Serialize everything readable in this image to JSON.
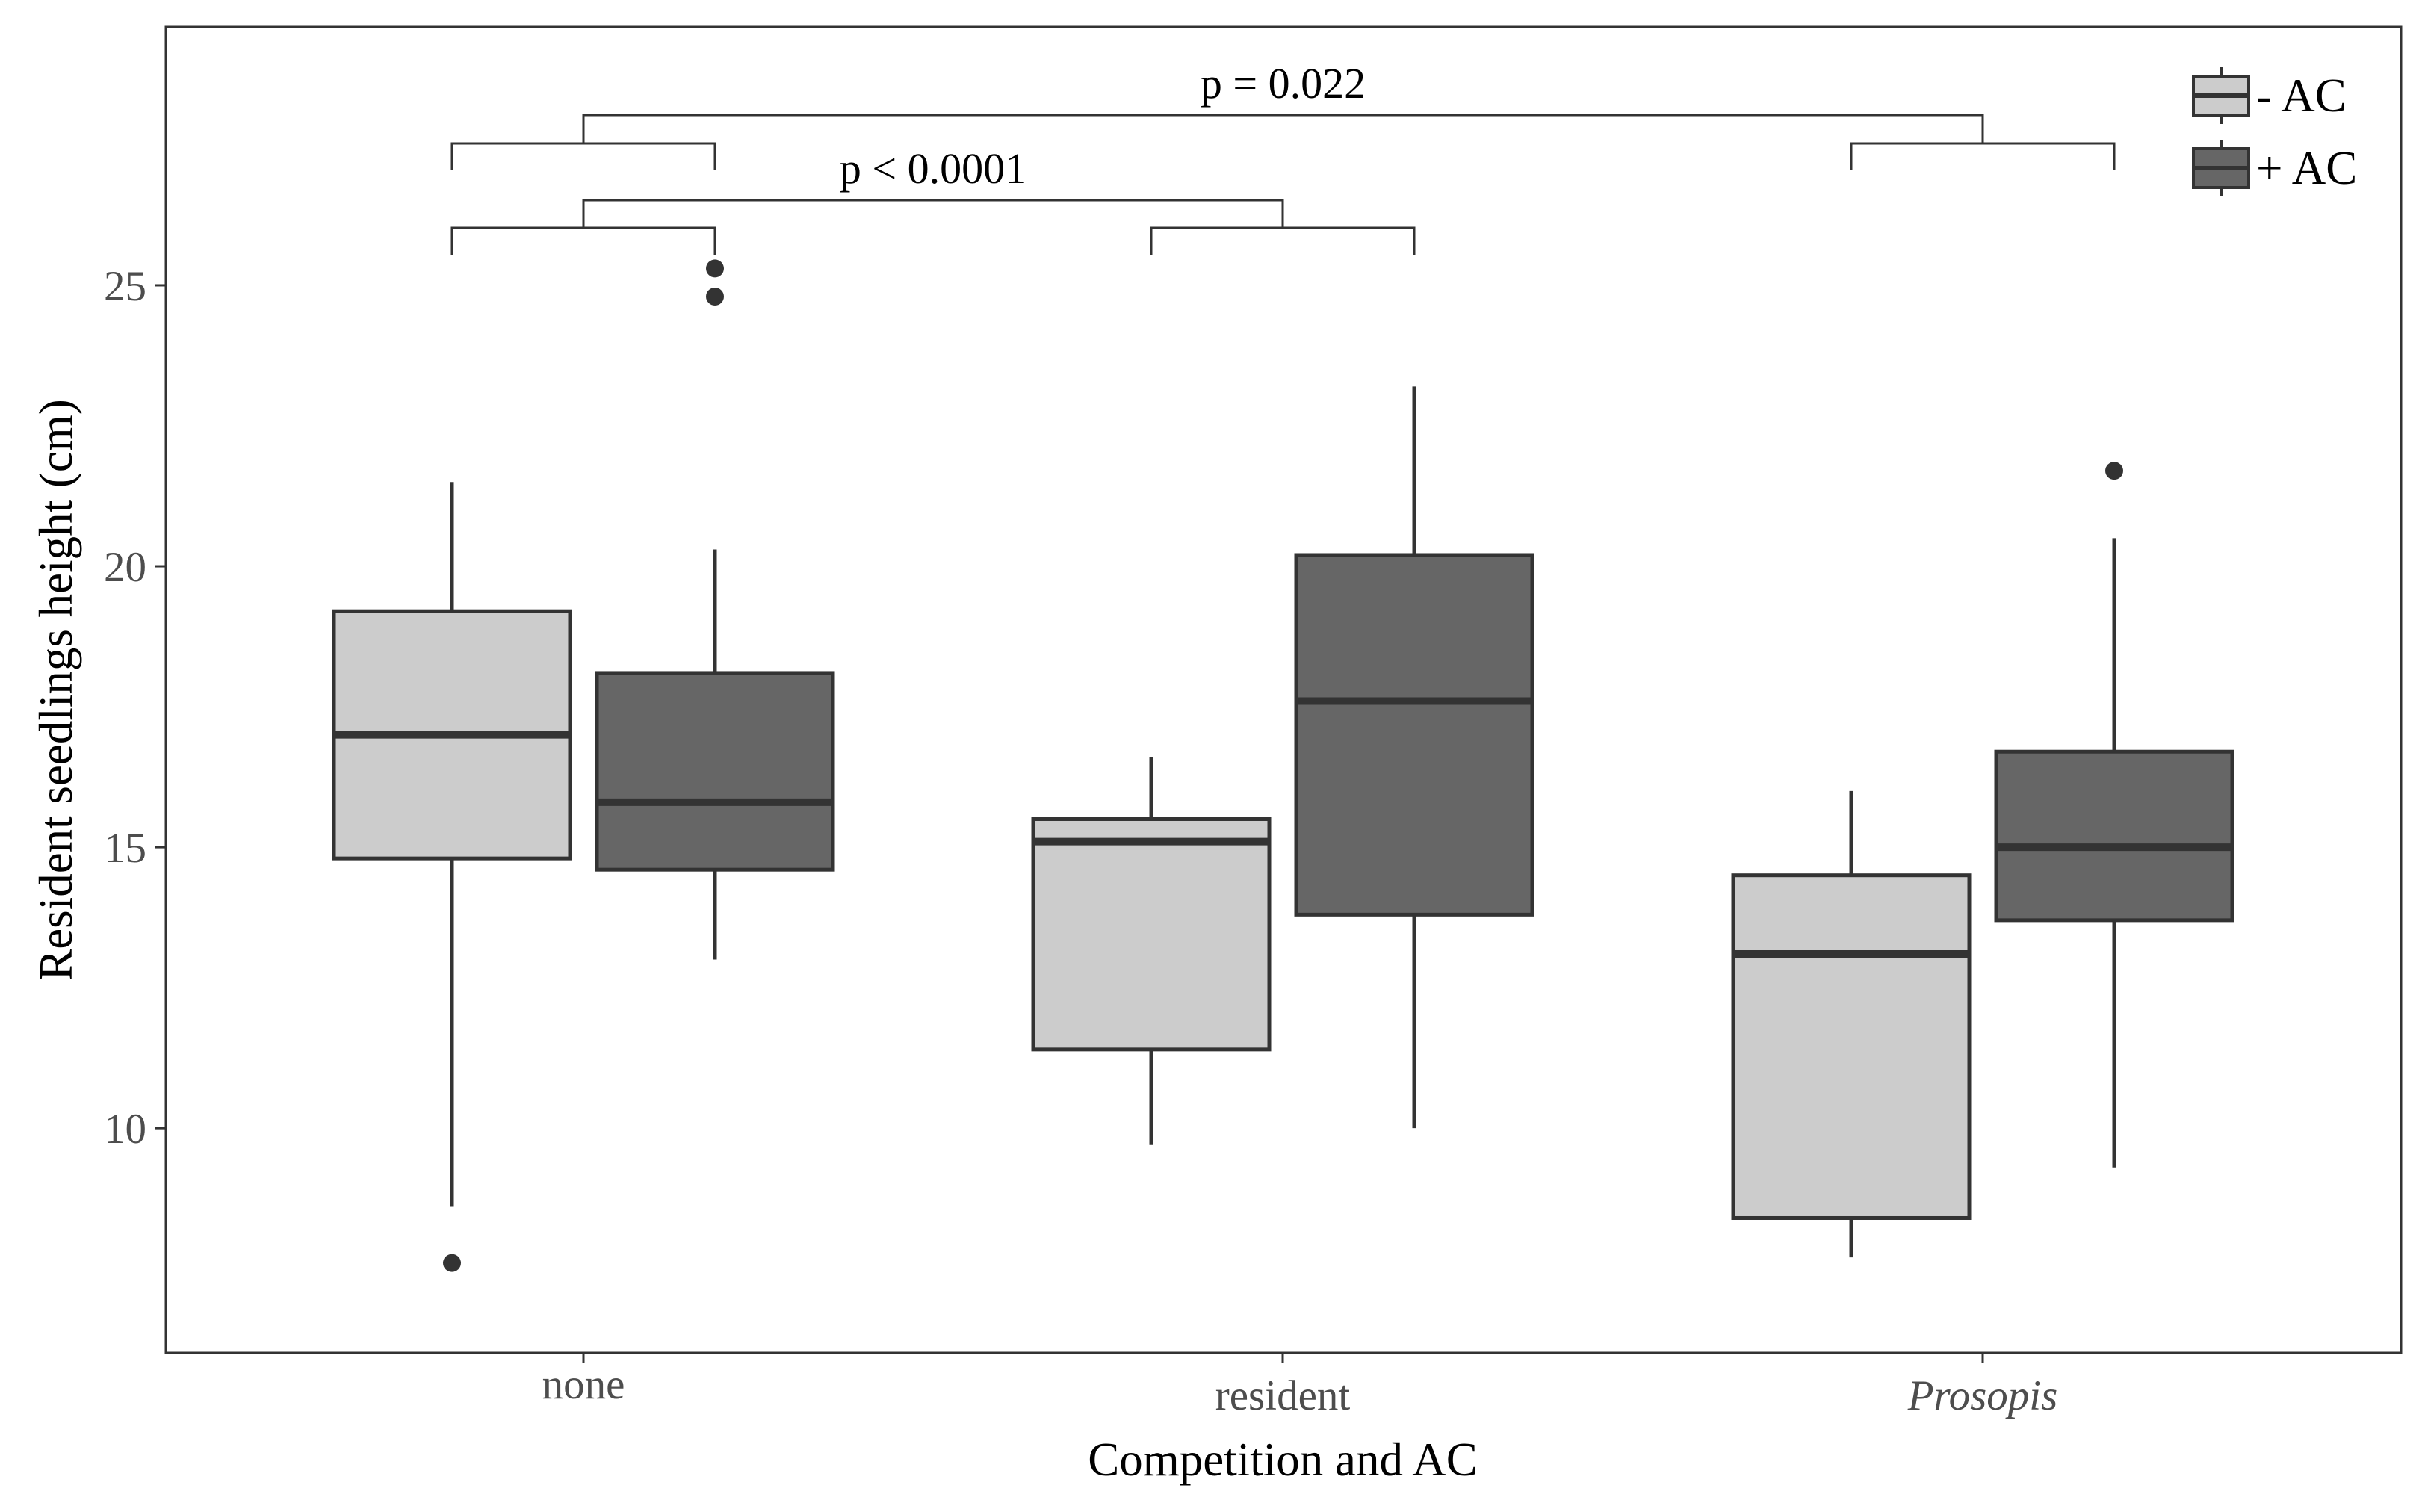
{
  "chart_data": {
    "type": "boxplot",
    "title": "",
    "xlabel": "Competition and AC",
    "ylabel": "Resident seedlings height (cm)",
    "ylim": [
      6,
      29.6
    ],
    "yticks": [
      10,
      15,
      20,
      25
    ],
    "grid": false,
    "legend_position": "top-right",
    "categories": [
      {
        "label": "none",
        "italic": false
      },
      {
        "label": "resident",
        "italic": false
      },
      {
        "label": "Prosopis",
        "italic": true
      }
    ],
    "series": [
      {
        "name": "- AC",
        "color": "#cccccc",
        "boxes": [
          {
            "category": "none",
            "whisker_low": 8.6,
            "q1": 14.8,
            "median": 17.0,
            "q3": 19.2,
            "whisker_high": 21.5,
            "outliers": [
              7.6
            ]
          },
          {
            "category": "resident",
            "whisker_low": 9.7,
            "q1": 11.4,
            "median": 15.1,
            "q3": 15.5,
            "whisker_high": 16.6,
            "outliers": []
          },
          {
            "category": "Prosopis",
            "whisker_low": 7.7,
            "q1": 8.4,
            "median": 13.1,
            "q3": 14.5,
            "whisker_high": 16.0,
            "outliers": []
          }
        ]
      },
      {
        "name": "+ AC",
        "color": "#666666",
        "boxes": [
          {
            "category": "none",
            "whisker_low": 13.0,
            "q1": 14.6,
            "median": 15.8,
            "q3": 18.1,
            "whisker_high": 20.3,
            "outliers": [
              24.8,
              25.3
            ]
          },
          {
            "category": "resident",
            "whisker_low": 10.0,
            "q1": 13.8,
            "median": 17.6,
            "q3": 20.2,
            "whisker_high": 23.2,
            "outliers": []
          },
          {
            "category": "Prosopis",
            "whisker_low": 9.3,
            "q1": 13.7,
            "median": 15.0,
            "q3": 16.7,
            "whisker_high": 20.5,
            "outliers": [
              21.7
            ]
          }
        ]
      }
    ],
    "annotations": [
      {
        "label": "p = 0.022",
        "comparison": [
          "none",
          "Prosopis"
        ]
      },
      {
        "label": "p < 0.0001",
        "comparison": [
          "none",
          "resident"
        ]
      }
    ]
  }
}
